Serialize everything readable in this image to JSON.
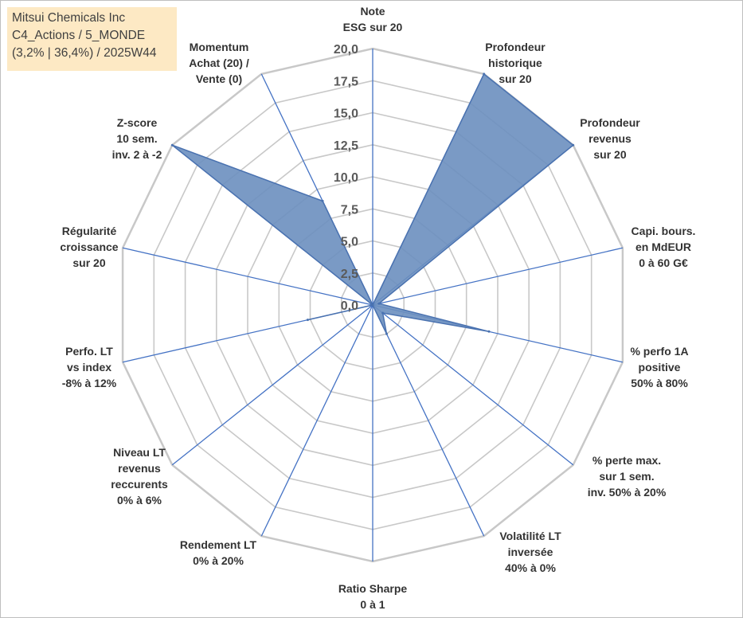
{
  "info": {
    "line1": "Mitsui Chemicals Inc",
    "line2": "C4_Actions / 5_MONDE",
    "line3": "(3,2% | 36,4%) / 2025W44"
  },
  "chart_data": {
    "type": "radar",
    "axes": [
      [
        "Note",
        "ESG sur 20"
      ],
      [
        "Profondeur",
        "historique",
        "sur 20"
      ],
      [
        "Profondeur",
        "revenus",
        "sur 20"
      ],
      [
        "Capi. bours.",
        "en MdEUR",
        "0 à 60 G€"
      ],
      [
        "% perfo 1A",
        "positive",
        "50% à 80%"
      ],
      [
        "% perte max.",
        "sur 1 sem.",
        "inv. 50% à 20%"
      ],
      [
        "Volatilité LT",
        "inversée",
        "40% à 0%"
      ],
      [
        "Ratio Sharpe",
        "0 à 1"
      ],
      [
        "Rendement LT",
        "0% à 20%"
      ],
      [
        "Niveau LT",
        "revenus",
        "reccurents",
        "0% à 6%"
      ],
      [
        "Perfo. LT",
        "vs index",
        "-8% à 12%"
      ],
      [
        "Régularité",
        "croissance",
        "sur 20"
      ],
      [
        "Z-score",
        "10 sem.",
        "inv. 2 à -2"
      ],
      [
        "Momentum",
        "Achat (20) /",
        "Vente (0)"
      ]
    ],
    "values": [
      0,
      20,
      20,
      0.5,
      9.3,
      1,
      2.5,
      0,
      0,
      0,
      5.2,
      0,
      20,
      9
    ],
    "rmin": 0,
    "rmax": 20,
    "ticks": [
      "0,0",
      "2,5",
      "5,0",
      "7,5",
      "10,0",
      "12,5",
      "15,0",
      "17,5",
      "20,0"
    ],
    "grid": true,
    "colors": {
      "fill": "#6b8fbf",
      "stroke": "#4a72b0",
      "spoke": "#4472c4",
      "grid": "#c8c8c8"
    }
  }
}
